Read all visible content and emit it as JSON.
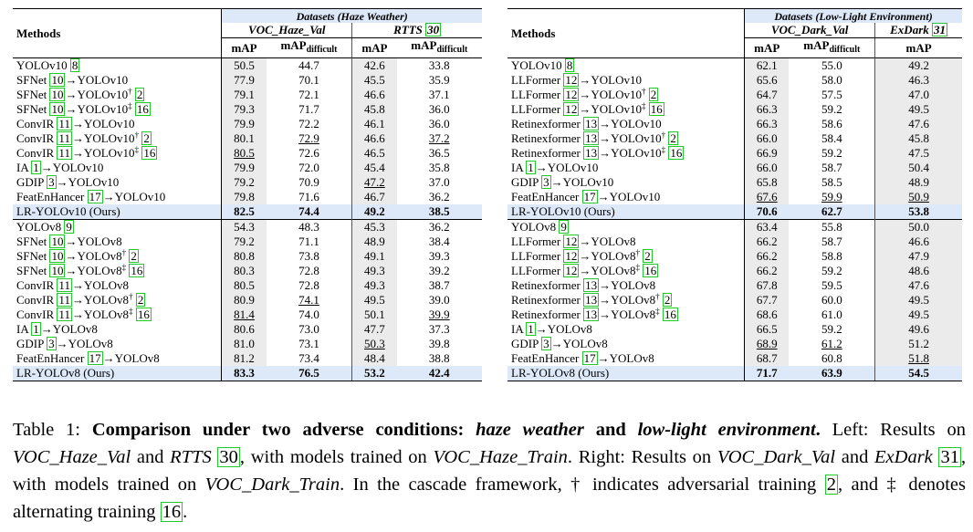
{
  "left": {
    "methods_header": "Methods",
    "datasets_title": "Datasets (Haze Weather)",
    "sub1": "VOC_Haze_Val",
    "sub2": "RTTS",
    "sub2_cite": "30",
    "metric_map": "mAP",
    "metric_diff_base": "mAP",
    "metric_diff_sub": "difficult",
    "groups": [
      {
        "rows": [
          {
            "m": "YOLOv10",
            "c1": "8",
            "v": [
              "50.5",
              "44.7",
              "42.6",
              "33.8"
            ],
            "u": [
              0,
              0,
              0,
              0
            ]
          },
          {
            "m": "SFNet",
            "c1": "10",
            "t": "YOLOv10",
            "v": [
              "77.9",
              "70.1",
              "45.5",
              "35.9"
            ]
          },
          {
            "m": "SFNet",
            "c1": "10",
            "t": "YOLOv10",
            "d": "†",
            "c2": "2",
            "v": [
              "79.1",
              "72.1",
              "46.6",
              "37.1"
            ]
          },
          {
            "m": "SFNet",
            "c1": "10",
            "t": "YOLOv10",
            "d": "‡",
            "c2": "16",
            "v": [
              "79.3",
              "71.7",
              "45.8",
              "36.0"
            ]
          },
          {
            "m": "ConvIR",
            "c1": "11",
            "t": "YOLOv10",
            "v": [
              "79.9",
              "72.2",
              "46.1",
              "36.0"
            ]
          },
          {
            "m": "ConvIR",
            "c1": "11",
            "t": "YOLOv10",
            "d": "†",
            "c2": "2",
            "v": [
              "80.1",
              "72.9",
              "46.6",
              "37.2"
            ],
            "u": [
              0,
              1,
              0,
              1
            ]
          },
          {
            "m": "ConvIR",
            "c1": "11",
            "t": "YOLOv10",
            "d": "‡",
            "c2": "16",
            "v": [
              "80.5",
              "72.6",
              "46.5",
              "36.5"
            ],
            "u": [
              1,
              0,
              0,
              0
            ]
          },
          {
            "m": "IA",
            "c1": "1",
            "t": "YOLOv10",
            "v": [
              "79.9",
              "72.0",
              "45.4",
              "35.8"
            ]
          },
          {
            "m": "GDIP",
            "c1": "3",
            "t": "YOLOv10",
            "v": [
              "79.2",
              "70.9",
              "47.2",
              "37.0"
            ],
            "u": [
              0,
              0,
              1,
              0
            ]
          },
          {
            "m": "FeatEnHancer",
            "c1": "17",
            "t": "YOLOv10",
            "v": [
              "79.8",
              "71.6",
              "46.7",
              "36.2"
            ]
          }
        ],
        "ours": {
          "m": "LR-YOLOv10 (Ours)",
          "v": [
            "82.5",
            "74.4",
            "49.2",
            "38.5"
          ]
        }
      },
      {
        "rows": [
          {
            "m": "YOLOv8",
            "c1": "9",
            "v": [
              "54.3",
              "48.3",
              "45.3",
              "36.2"
            ]
          },
          {
            "m": "SFNet",
            "c1": "10",
            "t": "YOLOv8",
            "v": [
              "79.2",
              "71.1",
              "48.9",
              "38.4"
            ]
          },
          {
            "m": "SFNet",
            "c1": "10",
            "t": "YOLOv8",
            "d": "†",
            "c2": "2",
            "v": [
              "80.8",
              "73.8",
              "49.1",
              "39.3"
            ]
          },
          {
            "m": "SFNet",
            "c1": "10",
            "t": "YOLOv8",
            "d": "‡",
            "c2": "16",
            "v": [
              "80.3",
              "72.8",
              "49.3",
              "39.2"
            ]
          },
          {
            "m": "ConvIR",
            "c1": "11",
            "t": "YOLOv8",
            "v": [
              "80.5",
              "72.8",
              "49.3",
              "38.7"
            ]
          },
          {
            "m": "ConvIR",
            "c1": "11",
            "t": "YOLOv8",
            "d": "†",
            "c2": "2",
            "v": [
              "80.9",
              "74.1",
              "49.5",
              "39.0"
            ],
            "u": [
              0,
              1,
              0,
              0
            ]
          },
          {
            "m": "ConvIR",
            "c1": "11",
            "t": "YOLOv8",
            "d": "‡",
            "c2": "16",
            "v": [
              "81.4",
              "74.0",
              "50.1",
              "39.9"
            ],
            "u": [
              1,
              0,
              0,
              1
            ]
          },
          {
            "m": "IA",
            "c1": "1",
            "t": "YOLOv8",
            "v": [
              "80.6",
              "73.0",
              "47.7",
              "37.3"
            ]
          },
          {
            "m": "GDIP",
            "c1": "3",
            "t": "YOLOv8",
            "v": [
              "81.0",
              "73.1",
              "50.3",
              "39.8"
            ],
            "u": [
              0,
              0,
              1,
              0
            ]
          },
          {
            "m": "FeatEnHancer",
            "c1": "17",
            "t": "YOLOv8",
            "v": [
              "81.2",
              "73.4",
              "48.4",
              "38.8"
            ]
          }
        ],
        "ours": {
          "m": "LR-YOLOv8 (Ours)",
          "v": [
            "83.3",
            "76.5",
            "53.2",
            "42.4"
          ]
        }
      }
    ]
  },
  "right": {
    "methods_header": "Methods",
    "datasets_title": "Datasets (Low-Light Environment)",
    "sub1": "VOC_Dark_Val",
    "sub2": "ExDark",
    "sub2_cite": "31",
    "metric_map": "mAP",
    "metric_diff_base": "mAP",
    "metric_diff_sub": "difficult",
    "groups": [
      {
        "rows": [
          {
            "m": "YOLOv10",
            "c1": "8",
            "v": [
              "62.1",
              "55.0",
              "49.2"
            ]
          },
          {
            "m": "LLFormer",
            "c1": "12",
            "t": "YOLOv10",
            "v": [
              "65.6",
              "58.0",
              "46.3"
            ]
          },
          {
            "m": "LLFormer",
            "c1": "12",
            "t": "YOLOv10",
            "d": "†",
            "c2": "2",
            "v": [
              "64.7",
              "57.5",
              "47.0"
            ]
          },
          {
            "m": "LLFormer",
            "c1": "12",
            "t": "YOLOv10",
            "d": "‡",
            "c2": "16",
            "v": [
              "66.3",
              "59.2",
              "49.5"
            ]
          },
          {
            "m": "Retinexformer",
            "c1": "13",
            "t": "YOLOv10",
            "v": [
              "66.3",
              "58.6",
              "47.6"
            ]
          },
          {
            "m": "Retinexformer",
            "c1": "13",
            "t": "YOLOv10",
            "d": "†",
            "c2": "2",
            "v": [
              "66.0",
              "58.4",
              "45.8"
            ]
          },
          {
            "m": "Retinexformer",
            "c1": "13",
            "t": "YOLOv10",
            "d": "‡",
            "c2": "16",
            "v": [
              "66.9",
              "59.2",
              "47.5"
            ]
          },
          {
            "m": "IA",
            "c1": "1",
            "t": "YOLOv10",
            "v": [
              "66.0",
              "58.7",
              "50.4"
            ]
          },
          {
            "m": "GDIP",
            "c1": "3",
            "t": "YOLOv10",
            "v": [
              "65.8",
              "58.5",
              "48.9"
            ]
          },
          {
            "m": "FeatEnHancer",
            "c1": "17",
            "t": "YOLOv10",
            "v": [
              "67.6",
              "59.9",
              "50.9"
            ],
            "u": [
              1,
              1,
              1
            ]
          }
        ],
        "ours": {
          "m": "LR-YOLOv10 (Ours)",
          "v": [
            "70.6",
            "62.7",
            "53.8"
          ]
        }
      },
      {
        "rows": [
          {
            "m": "YOLOv8",
            "c1": "9",
            "v": [
              "63.4",
              "55.8",
              "50.0"
            ]
          },
          {
            "m": "LLFormer",
            "c1": "12",
            "t": "YOLOv8",
            "v": [
              "66.2",
              "58.7",
              "46.6"
            ]
          },
          {
            "m": "LLFormer",
            "c1": "12",
            "t": "YOLOv8",
            "d": "†",
            "c2": "2",
            "v": [
              "66.2",
              "58.8",
              "47.9"
            ]
          },
          {
            "m": "LLFormer",
            "c1": "12",
            "t": "YOLOv8",
            "d": "‡",
            "c2": "16",
            "v": [
              "66.2",
              "59.2",
              "48.6"
            ]
          },
          {
            "m": "Retinexformer",
            "c1": "13",
            "t": "YOLOv8",
            "v": [
              "67.8",
              "59.5",
              "47.6"
            ]
          },
          {
            "m": "Retinexformer",
            "c1": "13",
            "t": "YOLOv8",
            "d": "†",
            "c2": "2",
            "v": [
              "67.7",
              "60.0",
              "49.5"
            ]
          },
          {
            "m": "Retinexformer",
            "c1": "13",
            "t": "YOLOv8",
            "d": "‡",
            "c2": "16",
            "v": [
              "68.6",
              "61.0",
              "49.5"
            ]
          },
          {
            "m": "IA",
            "c1": "1",
            "t": "YOLOv8",
            "v": [
              "66.5",
              "59.2",
              "49.6"
            ]
          },
          {
            "m": "GDIP",
            "c1": "3",
            "t": "YOLOv8",
            "v": [
              "68.9",
              "61.2",
              "51.2"
            ],
            "u": [
              1,
              1,
              0
            ]
          },
          {
            "m": "FeatEnHancer",
            "c1": "17",
            "t": "YOLOv8",
            "v": [
              "68.7",
              "60.8",
              "51.8"
            ],
            "u": [
              0,
              0,
              1
            ]
          }
        ],
        "ours": {
          "m": "LR-YOLOv8 (Ours)",
          "v": [
            "71.7",
            "63.9",
            "54.5"
          ]
        }
      }
    ]
  },
  "caption": {
    "label": "Table 1:",
    "bold_1": "Comparison under two adverse conditions:",
    "bi_1": "haze weather",
    "bold_2": "and",
    "bi_2": "low-light environment",
    "bold_3": ".",
    "t1": "Left: Results on",
    "i1": "VOC_Haze_Val",
    "t2": "and",
    "i2": "RTTS",
    "c1": "30",
    "t3": ", with models trained on",
    "i3": "VOC_Haze_Train",
    "t4": ". Right: Results on",
    "i4": "VOC_Dark_Val",
    "t5": "and",
    "i5": "ExDark",
    "c2": "31",
    "t6": ", with models trained on",
    "i6": "VOC_Dark_Train",
    "t7": ". In the cascade framework, † indicates adversarial training",
    "c3": "2",
    "t8": ", and ‡ denotes alternating training",
    "c4": "16",
    "t9": "."
  },
  "colors": {
    "highlight": "#dde8f8",
    "shade": "#ebebeb",
    "cite_box": "#22c92a"
  }
}
